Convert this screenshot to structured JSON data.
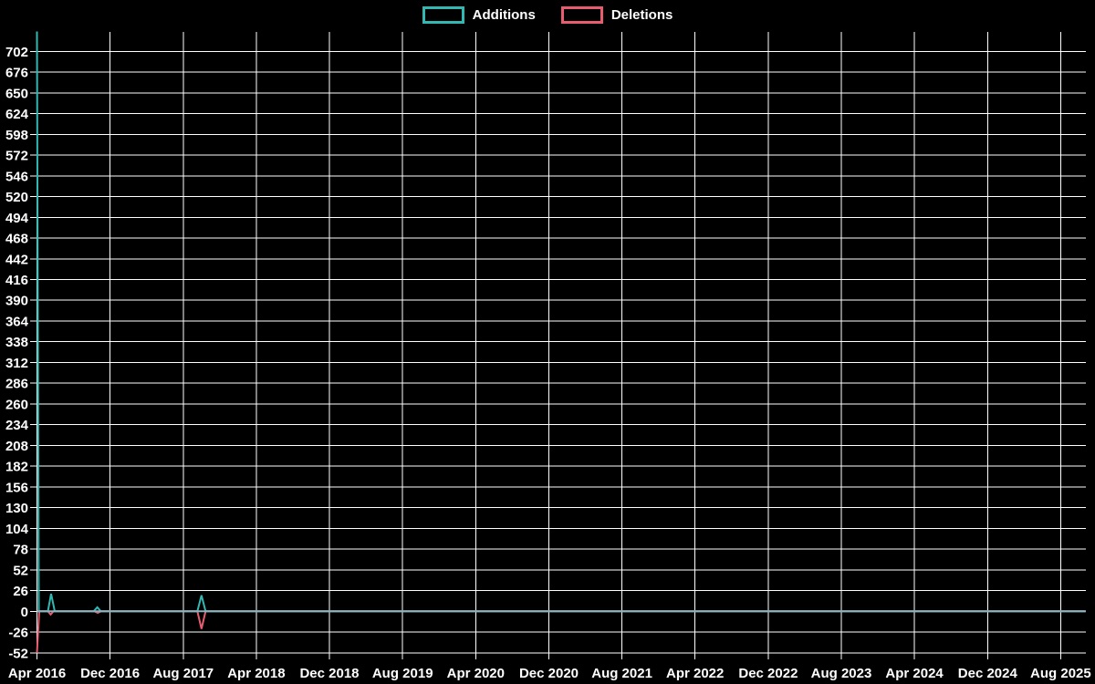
{
  "legend": {
    "items": [
      {
        "label": "Additions",
        "color": "#31b8b2"
      },
      {
        "label": "Deletions",
        "color": "#e85c70"
      }
    ]
  },
  "chart_data": {
    "type": "line",
    "title": "",
    "background": "#000000",
    "grid": true,
    "grid_color": "#ffffff",
    "text_color": "#ffffff",
    "zero_line_color": "#8fb2bf",
    "legend_position": "top-center",
    "y_axis": {
      "min": -58,
      "max": 727,
      "step": 26,
      "tick_labels": [
        702,
        676,
        650,
        624,
        598,
        572,
        546,
        520,
        494,
        468,
        442,
        416,
        390,
        364,
        338,
        312,
        286,
        260,
        234,
        208,
        182,
        156,
        130,
        104,
        78,
        52,
        26,
        0,
        -26,
        -52
      ]
    },
    "x_axis": {
      "tick_step_months": 8,
      "tick_labels": [
        "Apr 2016",
        "Dec 2016",
        "Aug 2017",
        "Apr 2018",
        "Dec 2018",
        "Aug 2019",
        "Apr 2020",
        "Dec 2020",
        "Aug 2021",
        "Apr 2022",
        "Dec 2022",
        "Aug 2023",
        "Apr 2024",
        "Dec 2024",
        "Aug 2025"
      ],
      "range_months_from_apr_2016": 114.7
    },
    "series": [
      {
        "name": "Additions",
        "color": "#31b8b2",
        "points_month_value": [
          [
            0,
            727
          ],
          [
            0.2,
            0
          ],
          [
            1.2,
            0
          ],
          [
            1.55,
            22
          ],
          [
            1.95,
            0
          ],
          [
            6.2,
            0
          ],
          [
            6.6,
            5
          ],
          [
            7.0,
            0
          ],
          [
            17.55,
            0
          ],
          [
            18.0,
            20
          ],
          [
            18.45,
            0
          ],
          [
            114.7,
            0
          ]
        ]
      },
      {
        "name": "Deletions",
        "color": "#e85c70",
        "points_month_value": [
          [
            0,
            -52
          ],
          [
            0.25,
            0
          ],
          [
            1.2,
            0
          ],
          [
            1.5,
            -4
          ],
          [
            1.8,
            0
          ],
          [
            6.3,
            0
          ],
          [
            6.65,
            -2
          ],
          [
            7.0,
            0
          ],
          [
            17.55,
            0
          ],
          [
            18.0,
            -22
          ],
          [
            18.45,
            0
          ],
          [
            114.7,
            0
          ]
        ]
      }
    ],
    "notable_data_points": [
      {
        "period": "Apr 2016",
        "additions": 727,
        "deletions": -52
      },
      {
        "period": "May 2016",
        "additions": 22,
        "deletions": -4
      },
      {
        "period": "Nov 2016",
        "additions": 5,
        "deletions": -2
      },
      {
        "period": "Oct 2017",
        "additions": 20,
        "deletions": -22
      }
    ]
  }
}
